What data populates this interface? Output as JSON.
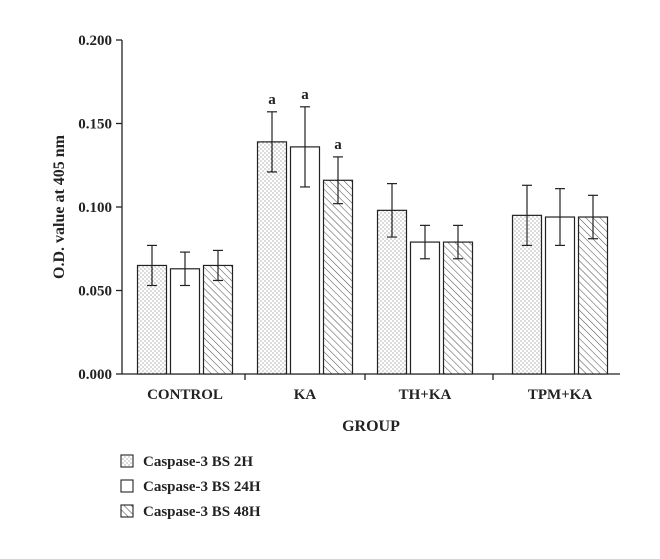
{
  "chart_data": {
    "type": "bar",
    "title": "",
    "xlabel": "GROUP",
    "ylabel": "O.D. value at 405 nm",
    "ylim": [
      0,
      0.2
    ],
    "yticks": [
      "0.000",
      "0.050",
      "0.100",
      "0.150",
      "0.200"
    ],
    "categories": [
      "CONTROL",
      "KA",
      "TH+KA",
      "TPM+KA"
    ],
    "series": [
      {
        "name": "Caspase-3 BS 2H",
        "pattern": "dots",
        "values": [
          0.065,
          0.139,
          0.098,
          0.095
        ],
        "errors": [
          0.012,
          0.018,
          0.016,
          0.018
        ],
        "annotations": [
          "",
          "a",
          "",
          ""
        ]
      },
      {
        "name": "Caspase-3 BS 24H",
        "pattern": "blank",
        "values": [
          0.063,
          0.136,
          0.079,
          0.094
        ],
        "errors": [
          0.01,
          0.024,
          0.01,
          0.017
        ],
        "annotations": [
          "",
          "a",
          "",
          ""
        ]
      },
      {
        "name": "Caspase-3 BS 48H",
        "pattern": "hatch",
        "values": [
          0.065,
          0.116,
          0.079,
          0.094
        ],
        "errors": [
          0.009,
          0.014,
          0.01,
          0.013
        ],
        "annotations": [
          "",
          "a",
          "",
          ""
        ]
      }
    ],
    "grid": false,
    "legend_position": "bottom-left",
    "colors": {
      "axis": "#222222",
      "bar_fill": "#ffffff",
      "pattern": "#555555"
    }
  }
}
